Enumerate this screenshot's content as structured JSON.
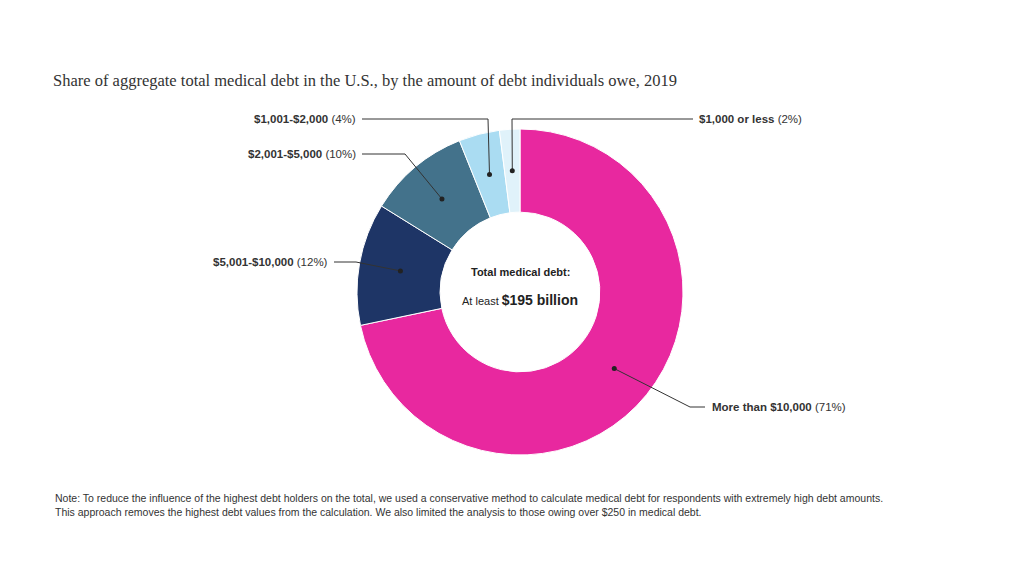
{
  "chart_data": {
    "type": "donut",
    "title": "Share of aggregate total medical debt in the U.S., by the amount of debt individuals owe, 2019",
    "categories": [
      "More than $10,000",
      "$5,001-$10,000",
      "$2,001-$5,000",
      "$1,001-$2,000",
      "$1,000 or less"
    ],
    "values": [
      71,
      12,
      10,
      4,
      2
    ],
    "value_labels": [
      "(71%)",
      "(12%)",
      "(10%)",
      "(4%)",
      "(2%)"
    ],
    "colors": [
      "#e8289f",
      "#1e3566",
      "#43728b",
      "#aadcf2",
      "#e0f2fa"
    ],
    "data_labels": true,
    "annotations": [
      "Total medical debt:",
      "At least",
      "$195 billion"
    ],
    "footnote": [
      "Note: To reduce the influence of the highest debt holders on the total, we used a conservative method to calculate medical debt for respondents with extremely high debt amounts.",
      "This approach removes the highest debt values from the calculation. We also limited the analysis to those owing over $250 in medical debt."
    ]
  }
}
